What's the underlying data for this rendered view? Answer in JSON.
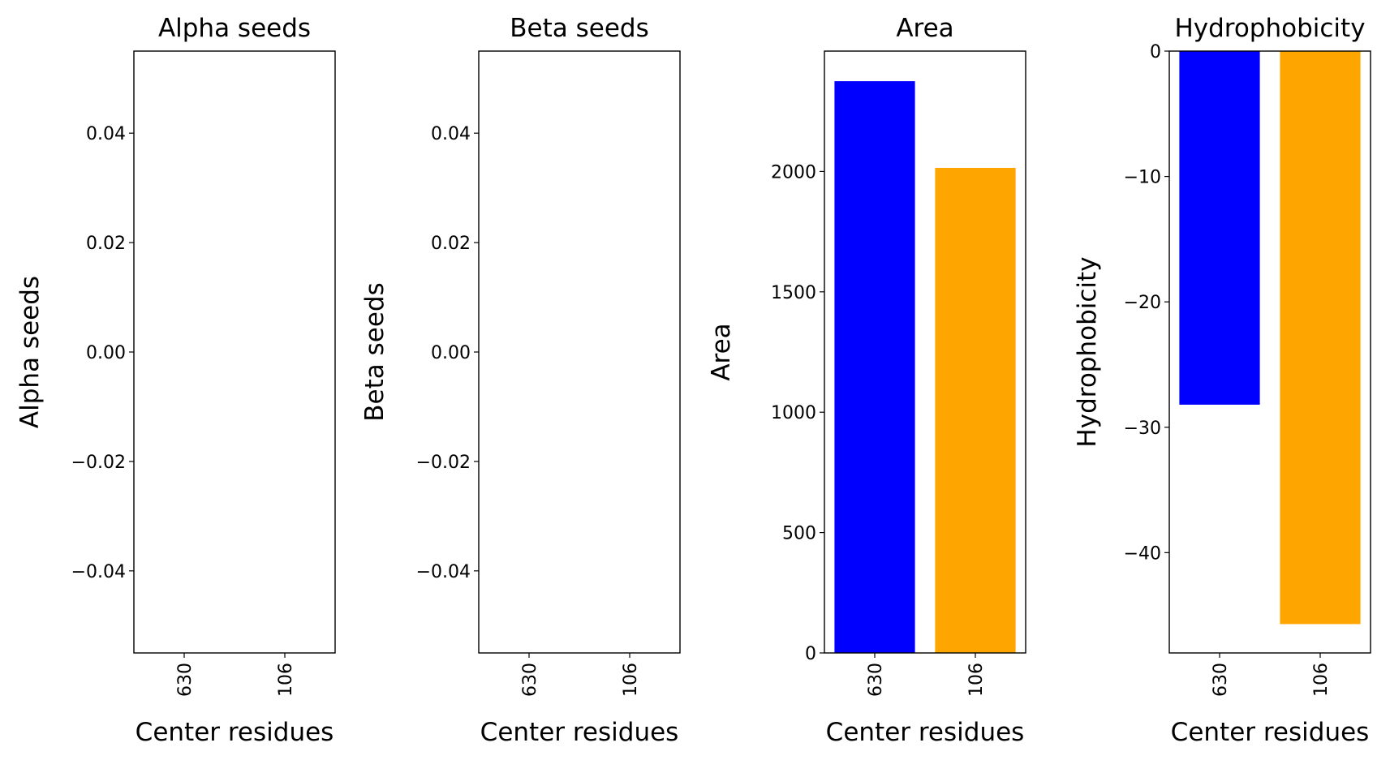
{
  "chart_data": [
    {
      "type": "bar",
      "title": "Alpha seeds",
      "xlabel": "Center residues",
      "ylabel": "Alpha seeds",
      "categories": [
        "630",
        "106"
      ],
      "values": [
        0,
        0
      ],
      "colors": [
        "#0000ff",
        "#ffa500"
      ],
      "ylim": [
        -0.055,
        0.055
      ],
      "yticks": [
        -0.04,
        -0.02,
        0.0,
        0.02,
        0.04
      ],
      "ytick_labels": [
        "−0.04",
        "−0.02",
        "0.00",
        "0.02",
        "0.04"
      ],
      "grid": false
    },
    {
      "type": "bar",
      "title": "Beta seeds",
      "xlabel": "Center residues",
      "ylabel": "Beta seeds",
      "categories": [
        "630",
        "106"
      ],
      "values": [
        0,
        0
      ],
      "colors": [
        "#0000ff",
        "#ffa500"
      ],
      "ylim": [
        -0.055,
        0.055
      ],
      "yticks": [
        -0.04,
        -0.02,
        0.0,
        0.02,
        0.04
      ],
      "ytick_labels": [
        "−0.04",
        "−0.02",
        "0.00",
        "0.02",
        "0.04"
      ],
      "grid": false
    },
    {
      "type": "bar",
      "title": "Area",
      "xlabel": "Center residues",
      "ylabel": "Area",
      "categories": [
        "630",
        "106"
      ],
      "values": [
        2375,
        2015
      ],
      "colors": [
        "#0000ff",
        "#ffa500"
      ],
      "ylim": [
        0,
        2500
      ],
      "yticks": [
        0,
        500,
        1000,
        1500,
        2000
      ],
      "ytick_labels": [
        "0",
        "500",
        "1000",
        "1500",
        "2000"
      ],
      "grid": false
    },
    {
      "type": "bar",
      "title": "Hydrophobicity",
      "xlabel": "Center residues",
      "ylabel": "Hydrophobicity",
      "categories": [
        "630",
        "106"
      ],
      "values": [
        -28.2,
        -45.7
      ],
      "colors": [
        "#0000ff",
        "#ffa500"
      ],
      "ylim": [
        -48,
        0
      ],
      "yticks": [
        -40,
        -30,
        -20,
        -10,
        0
      ],
      "ytick_labels": [
        "−40",
        "−30",
        "−20",
        "−10",
        "0"
      ],
      "grid": false
    }
  ]
}
